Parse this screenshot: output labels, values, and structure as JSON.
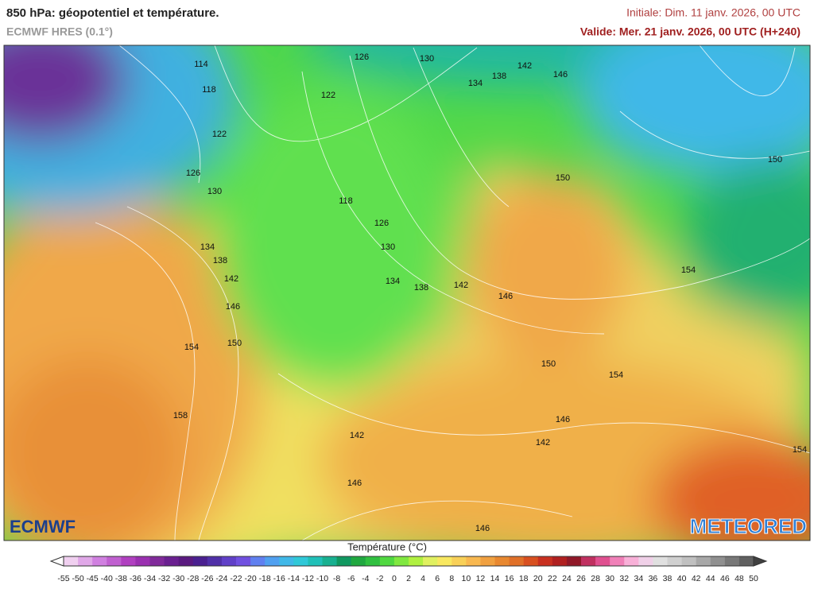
{
  "header": {
    "title": "850 hPa: géopotentiel et température.",
    "model": "ECMWF HRES (0.1°)",
    "initial": "Initiale: Dim. 11 janv. 2026, 00 UTC",
    "valid": "Valide: Mer. 21 janv. 2026, 00 UTC (H+240)"
  },
  "map": {
    "contour_labels": [
      "114",
      "118",
      "126",
      "130",
      "122",
      "122",
      "126",
      "130",
      "118",
      "126",
      "130",
      "134",
      "138",
      "134",
      "138",
      "142",
      "146",
      "150",
      "154",
      "158",
      "142",
      "146",
      "142",
      "146",
      "134",
      "138",
      "150",
      "150",
      "154",
      "150",
      "154",
      "146",
      "142",
      "142",
      "146",
      "146",
      "154"
    ]
  },
  "logos": {
    "left": "ECMWF",
    "right": "METEORED"
  },
  "colorbar": {
    "title": "Température (°C)",
    "labels": [
      "-55",
      "-50",
      "-45",
      "-40",
      "-38",
      "-36",
      "-34",
      "-32",
      "-30",
      "-28",
      "-26",
      "-24",
      "-22",
      "-20",
      "-18",
      "-16",
      "-14",
      "-12",
      "-10",
      "-8",
      "-6",
      "-4",
      "-2",
      "0",
      "2",
      "4",
      "6",
      "8",
      "10",
      "12",
      "14",
      "16",
      "18",
      "20",
      "22",
      "24",
      "26",
      "28",
      "30",
      "32",
      "34",
      "36",
      "38",
      "40",
      "42",
      "44",
      "46",
      "48",
      "50"
    ],
    "colors": [
      "#f0d0f0",
      "#e0a8e8",
      "#d080e0",
      "#c060d0",
      "#b040c0",
      "#9a30b0",
      "#802a9a",
      "#6a2090",
      "#5a1a80",
      "#4a2090",
      "#5030a8",
      "#6040c8",
      "#7050e0",
      "#6080f0",
      "#50a0f0",
      "#40b8e8",
      "#30c8d8",
      "#20c0b8",
      "#18b090",
      "#109860",
      "#20a840",
      "#30c040",
      "#50d840",
      "#80e840",
      "#b0f040",
      "#e0f060",
      "#f8e860",
      "#f8d058",
      "#f8b850",
      "#f0a040",
      "#e88830",
      "#e07028",
      "#d85020",
      "#c83020",
      "#b02020",
      "#901828",
      "#c03060",
      "#e05090",
      "#f080b8",
      "#f8b0d8",
      "#f0d0e8",
      "#e0e0e0",
      "#d0d0d0",
      "#c0c0c0",
      "#a8a8a8",
      "#909090",
      "#787878",
      "#606060"
    ],
    "under": "#ffffff",
    "over": "#404040"
  }
}
